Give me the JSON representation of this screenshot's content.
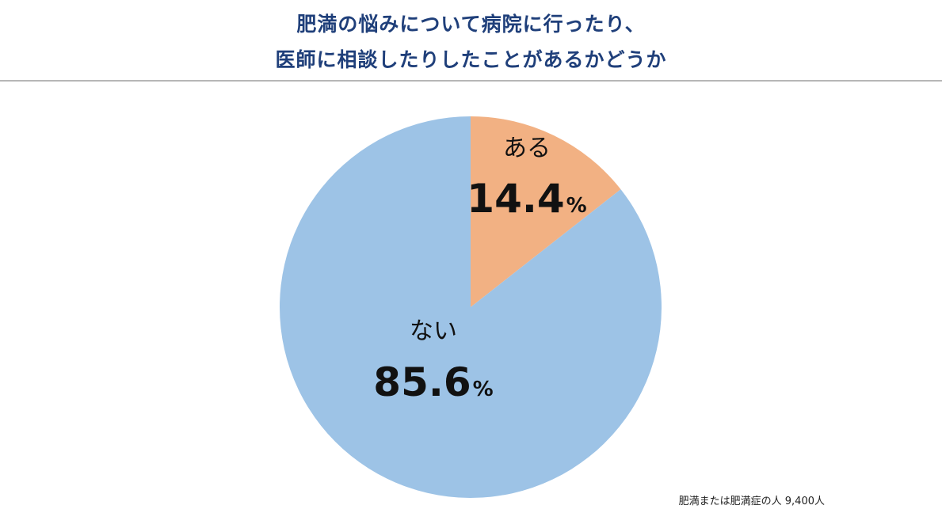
{
  "title": {
    "line1": "肥満の悩みについて病院に行ったり、",
    "line2": "医師に相談したりしたことがあるかどうか"
  },
  "note": "肥満または肥満症の人 9,400人",
  "colors": {
    "title": "#1f3f7a",
    "yes": "#f2b183",
    "no": "#9dc3e6",
    "divider": "#b7b7b7"
  },
  "chart_data": {
    "type": "pie",
    "unit": "%",
    "slices": [
      {
        "label": "ある",
        "value": 14.4,
        "display": "14.4",
        "color": "#f2b183"
      },
      {
        "label": "ない",
        "value": 85.6,
        "display": "85.6",
        "color": "#9dc3e6"
      }
    ]
  }
}
